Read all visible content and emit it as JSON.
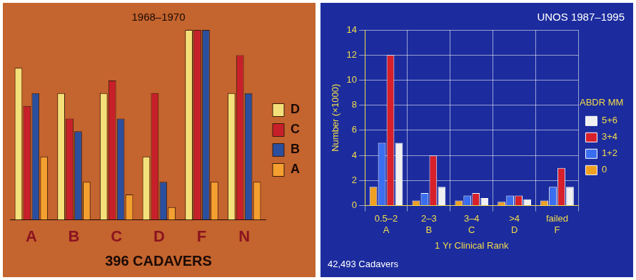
{
  "chart_data": [
    {
      "type": "bar",
      "title": "1968–1970",
      "annotation": "396 CADAVERS",
      "categories": [
        "A",
        "B",
        "C",
        "D",
        "F",
        "N"
      ],
      "series": [
        {
          "name": "D",
          "color": "#f3e07a",
          "values": [
            24,
            20,
            20,
            10,
            30,
            20
          ]
        },
        {
          "name": "C",
          "color": "#c8202a",
          "values": [
            18,
            16,
            22,
            20,
            30,
            26
          ]
        },
        {
          "name": "B",
          "color": "#2a4f9e",
          "values": [
            20,
            14,
            16,
            6,
            30,
            20
          ]
        },
        {
          "name": "A",
          "color": "#f4a030",
          "values": [
            10,
            6,
            4,
            2,
            6,
            6
          ]
        }
      ],
      "legend": "right",
      "grid": false,
      "tick_labels": "x"
    },
    {
      "type": "bar",
      "title": "UNOS 1987–1995",
      "annotation": "42,493 Cadavers",
      "x_label": "1 Yr Clinical Rank",
      "y_label": "Number (×1000)",
      "categories": [
        "0.5–2",
        "2–3",
        "3–4",
        ">4",
        "failed"
      ],
      "category_letters": [
        "A",
        "B",
        "C",
        "D",
        "F"
      ],
      "legend_title": "ABDR MM",
      "series": [
        {
          "name": "0",
          "color": "#f0a020",
          "values": [
            1.5,
            0.4,
            0.4,
            0.3,
            0.4
          ]
        },
        {
          "name": "1+2",
          "color": "#3a6ef0",
          "values": [
            5,
            1,
            0.8,
            0.8,
            1.5
          ]
        },
        {
          "name": "3+4",
          "color": "#d8202a",
          "values": [
            12,
            4,
            1,
            0.8,
            3
          ]
        },
        {
          "name": "5+6",
          "color": "#f0f0f0",
          "values": [
            5,
            1.5,
            0.6,
            0.5,
            1.5
          ]
        }
      ],
      "ylim": [
        0,
        14
      ],
      "yticks": [
        0,
        2,
        4,
        6,
        8,
        10,
        12,
        14
      ],
      "legend": "right",
      "grid": true
    }
  ]
}
